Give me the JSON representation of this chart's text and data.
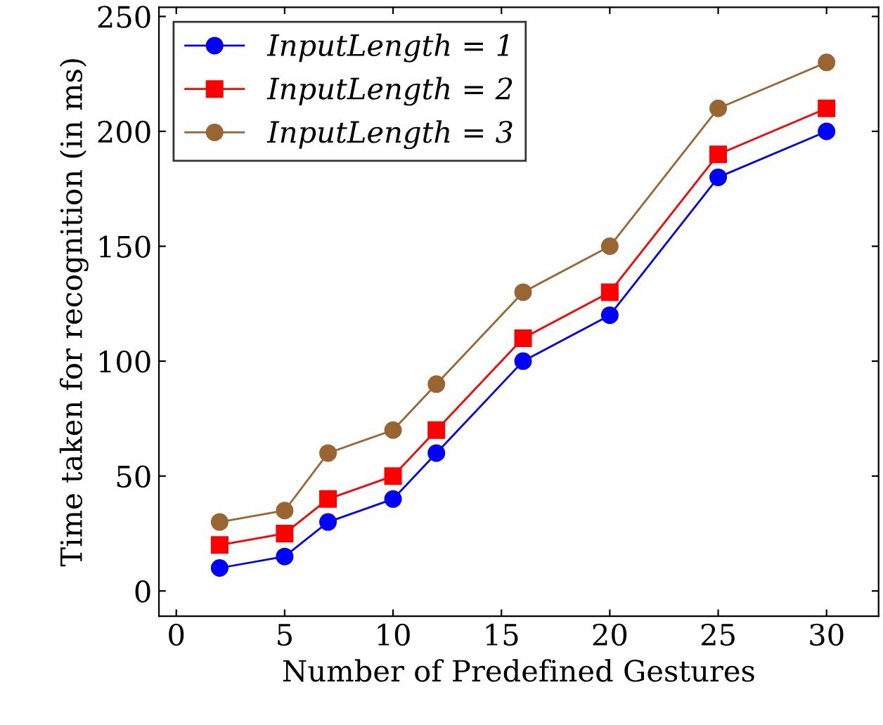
{
  "chart_data": {
    "type": "line",
    "xlabel": "Number of Predefined Gestures",
    "ylabel": "Time taken for recognition (in ms)",
    "xlim": [
      -0.8,
      32.4
    ],
    "ylim": [
      -11,
      254
    ],
    "xticks": [
      0,
      5,
      10,
      15,
      20,
      25,
      30
    ],
    "yticks": [
      0,
      50,
      100,
      150,
      200,
      250
    ],
    "x": [
      2,
      5,
      7,
      10,
      12,
      16,
      20,
      25,
      30
    ],
    "series": [
      {
        "name": "InputLength = 1",
        "color": "#0000ff",
        "marker": "circle",
        "values": [
          10,
          15,
          30,
          40,
          60,
          100,
          120,
          180,
          200
        ]
      },
      {
        "name": "InputLength = 2",
        "color": "#ff0000",
        "marker": "square",
        "values": [
          20,
          25,
          40,
          50,
          70,
          110,
          130,
          190,
          210
        ]
      },
      {
        "name": "InputLength = 3",
        "color": "#996633",
        "marker": "circle",
        "values": [
          30,
          35,
          60,
          70,
          90,
          130,
          150,
          210,
          230
        ]
      }
    ],
    "legend": "top left",
    "grid": false,
    "line_style": "solid"
  }
}
